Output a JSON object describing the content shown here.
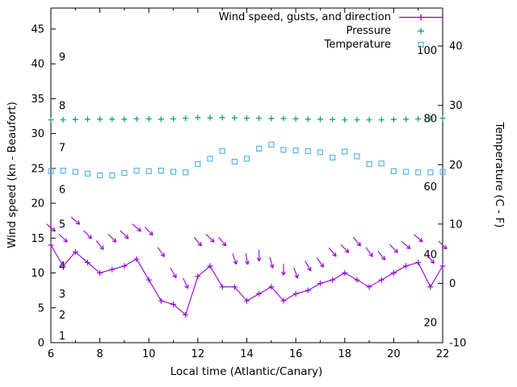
{
  "chart_data": {
    "type": "line",
    "title": "",
    "xlabel": "Local time (Atlantic/Canary)",
    "ylabel": "Wind speed (kn - Beaufort)",
    "y2label": "Temperature (C - F)",
    "xlim": [
      6,
      22
    ],
    "x_major_ticks": [
      6,
      8,
      10,
      12,
      14,
      16,
      18,
      20,
      22
    ],
    "x_minor_ticks": [
      7,
      9,
      11,
      13,
      15,
      17,
      19,
      21
    ],
    "y_left": {
      "lim": [
        0,
        48
      ],
      "ticks": [
        0,
        5,
        10,
        15,
        20,
        25,
        30,
        35,
        40,
        45
      ]
    },
    "y_right": {
      "lim": [
        -10,
        46.4
      ],
      "ticks": [
        -10,
        0,
        10,
        20,
        30,
        40
      ]
    },
    "beaufort_scale_labels": [
      {
        "beaufort": "1",
        "kn": 1
      },
      {
        "beaufort": "2",
        "kn": 4
      },
      {
        "beaufort": "3",
        "kn": 7
      },
      {
        "beaufort": "4",
        "kn": 11
      },
      {
        "beaufort": "5",
        "kn": 17
      },
      {
        "beaufort": "6",
        "kn": 22
      },
      {
        "beaufort": "7",
        "kn": 28
      },
      {
        "beaufort": "8",
        "kn": 34
      },
      {
        "beaufort": "9",
        "kn": 41
      }
    ],
    "inner_right_axis": {
      "lim": [
        14.05,
        112.5
      ],
      "labels": [
        20,
        40,
        60,
        80,
        100
      ]
    },
    "legend": [
      {
        "label": "Wind speed, gusts, and direction",
        "key": "wind",
        "marker": "line-plus",
        "color": "#9400d3"
      },
      {
        "label": "Pressure",
        "key": "pressure",
        "marker": "plus",
        "color": "#009e73"
      },
      {
        "label": "Temperature",
        "key": "temperature",
        "marker": "square",
        "color": "#56b4e9"
      }
    ],
    "series": {
      "x": [
        6,
        6.5,
        7,
        7.5,
        8,
        8.5,
        9,
        9.5,
        10,
        10.5,
        11,
        11.5,
        12,
        12.5,
        13,
        13.5,
        14,
        14.5,
        15,
        15.5,
        16,
        16.5,
        17,
        17.5,
        18,
        18.5,
        19,
        19.5,
        20,
        20.5,
        21,
        21.5,
        22
      ],
      "wind_speed_kn": [
        14,
        11,
        13,
        11.5,
        10,
        10.5,
        11,
        12,
        9,
        6,
        5.5,
        4,
        9.5,
        11,
        8,
        8,
        6,
        7,
        8,
        6,
        7,
        7.5,
        8.5,
        9,
        10,
        9,
        8,
        9,
        10,
        11,
        11.5,
        8,
        11
      ],
      "gust_kn": [
        16.5,
        15,
        17.5,
        15.5,
        14,
        15,
        15.5,
        16.5,
        16,
        13,
        10,
        8.5,
        14.5,
        15,
        14.5,
        12,
        12,
        12.5,
        11.5,
        10.5,
        10,
        11,
        11.5,
        13,
        13.5,
        14.5,
        13,
        12.5,
        13.5,
        14,
        15,
        12,
        14
      ],
      "gust_dir_deg": [
        40,
        45,
        40,
        45,
        50,
        45,
        45,
        40,
        45,
        55,
        60,
        65,
        50,
        45,
        50,
        70,
        80,
        90,
        75,
        90,
        70,
        60,
        55,
        50,
        45,
        50,
        55,
        50,
        45,
        40,
        40,
        50,
        45
      ],
      "pressure": [
        79.6,
        79.6,
        79.7,
        79.8,
        79.8,
        79.8,
        79.8,
        79.9,
        79.9,
        79.8,
        79.9,
        80.1,
        80.3,
        80.2,
        80.3,
        80.2,
        80.1,
        80.1,
        80.0,
        80.0,
        79.9,
        79.8,
        79.8,
        79.7,
        79.6,
        79.6,
        79.6,
        79.6,
        79.7,
        79.8,
        79.9,
        80.0,
        80.1
      ],
      "temperature_c": [
        18.9,
        19.0,
        18.8,
        18.5,
        18.2,
        18.2,
        18.6,
        19.0,
        18.9,
        19.0,
        18.8,
        18.7,
        20.1,
        21.0,
        22.3,
        20.5,
        21.0,
        22.7,
        23.4,
        22.5,
        22.4,
        22.3,
        22.1,
        21.2,
        22.2,
        21.4,
        20.1,
        20.2,
        18.9,
        18.8,
        18.7,
        18.7,
        18.8
      ]
    },
    "colors": {
      "wind": "#9400d3",
      "pressure": "#009e73",
      "temperature": "#56b4e9",
      "axis": "#000000",
      "background": "#ffffff"
    }
  }
}
